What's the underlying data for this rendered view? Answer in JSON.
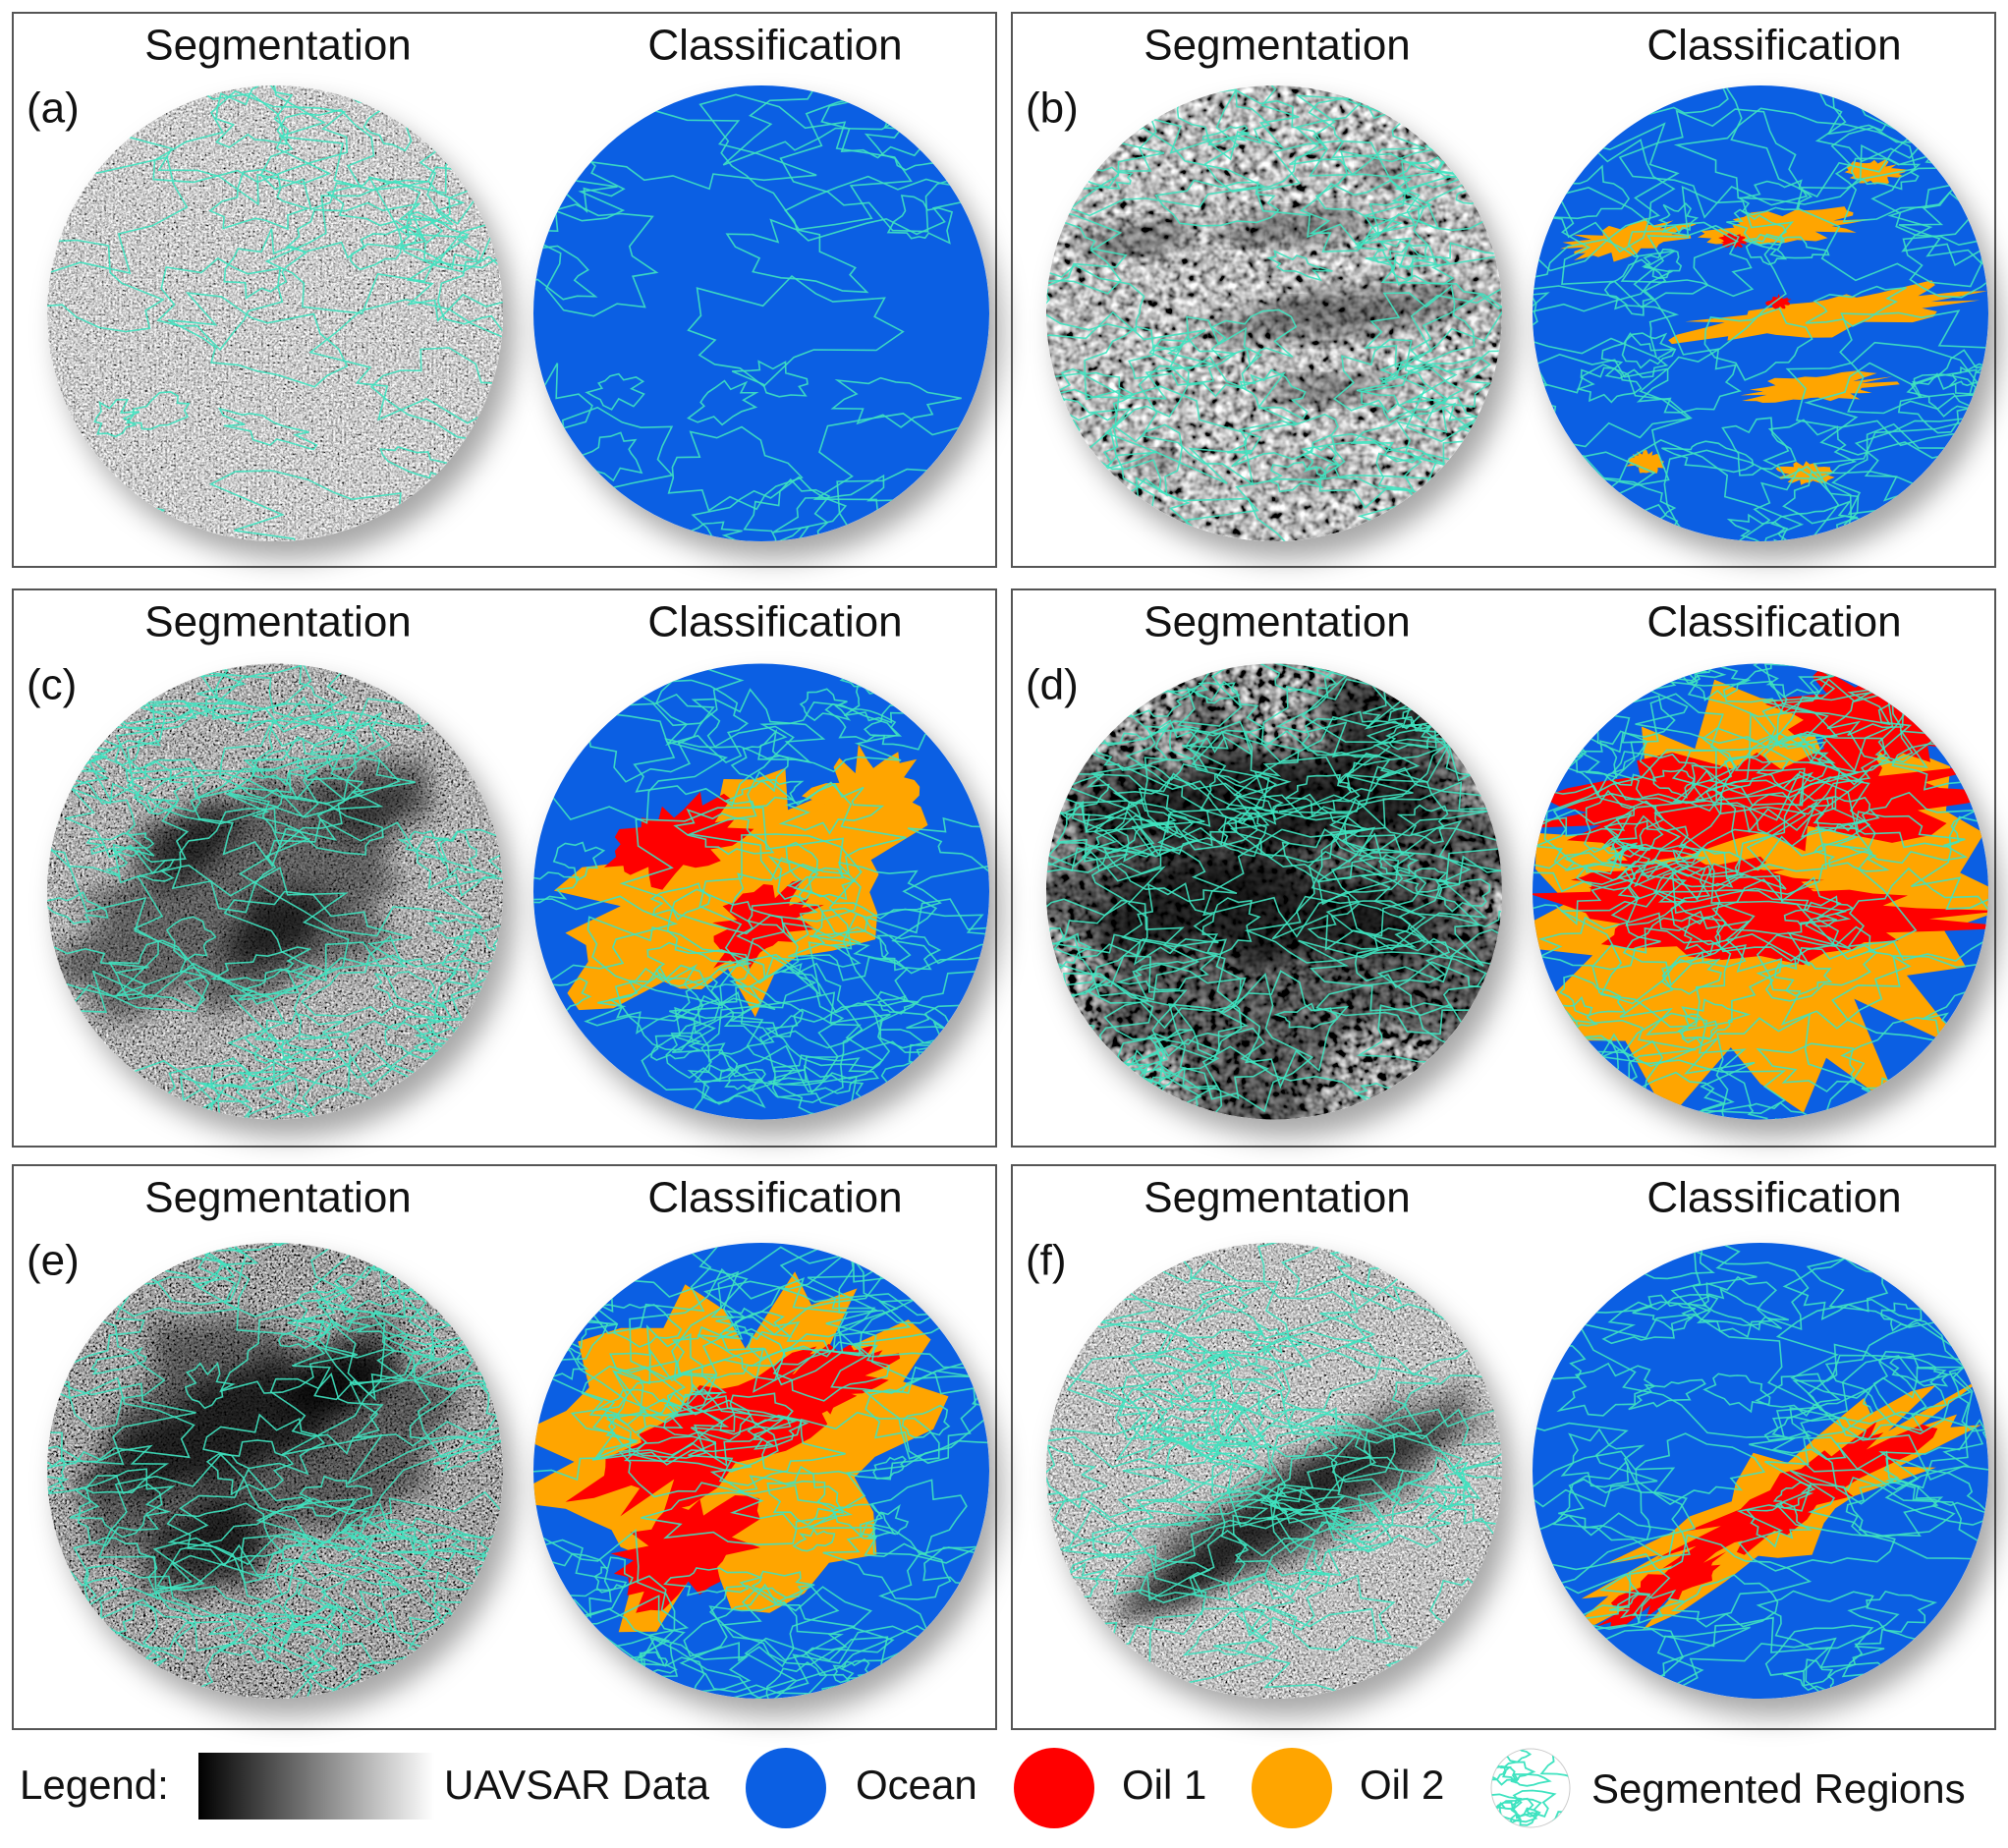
{
  "panels": [
    {
      "label": "(a)",
      "segmentation_title": "Segmentation",
      "classification_title": "Classification"
    },
    {
      "label": "(b)",
      "segmentation_title": "Segmentation",
      "classification_title": "Classification"
    },
    {
      "label": "(c)",
      "segmentation_title": "Segmentation",
      "classification_title": "Classification"
    },
    {
      "label": "(d)",
      "segmentation_title": "Segmentation",
      "classification_title": "Classification"
    },
    {
      "label": "(e)",
      "segmentation_title": "Segmentation",
      "classification_title": "Classification"
    },
    {
      "label": "(f)",
      "segmentation_title": "Segmentation",
      "classification_title": "Classification"
    }
  ],
  "legend": {
    "title": "Legend:",
    "items": [
      {
        "label": "UAVSAR Data"
      },
      {
        "label": "Ocean",
        "color": "#0b5fe3"
      },
      {
        "label": "Oil 1",
        "color": "#ff0000"
      },
      {
        "label": "Oil 2",
        "color": "#ffa500"
      },
      {
        "label": "Segmented Regions",
        "color": "#3fe3c0"
      }
    ]
  }
}
